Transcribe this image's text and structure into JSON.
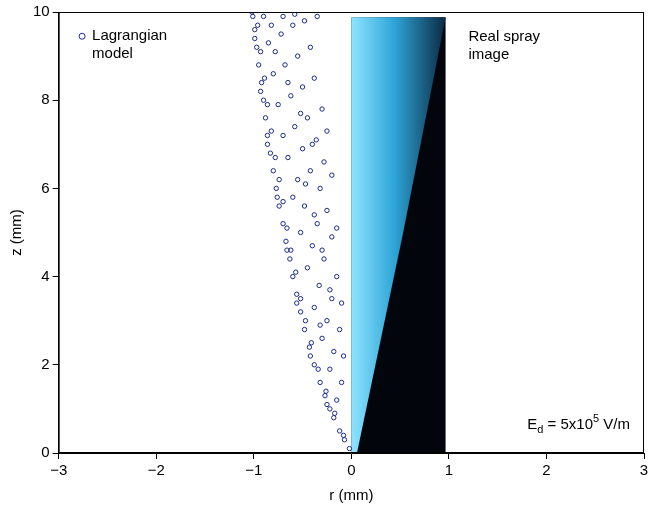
{
  "chart_data": {
    "type": "scatter",
    "xlabel": "r (mm)",
    "ylabel": "z (mm)",
    "xlim": [
      -3,
      3
    ],
    "xticks": [
      {
        "value": -3,
        "label": "−3"
      },
      {
        "value": -2,
        "label": "−2"
      },
      {
        "value": -1,
        "label": "−1"
      },
      0,
      1,
      2,
      3
    ],
    "ylim": [
      0,
      10
    ],
    "yticks": [
      0,
      2,
      4,
      6,
      8,
      10
    ],
    "grid": false,
    "legend": "upper left",
    "annotations": [
      {
        "text": "Real spray image"
      },
      {
        "parts": [
          {
            "text": "E"
          },
          {
            "sub": "d"
          },
          {
            "text": " = 5x10"
          },
          {
            "sup": "5"
          },
          {
            "text": " V/m"
          }
        ]
      }
    ],
    "x": [
      -0.02,
      -0.07,
      -0.12,
      -0.18,
      -0.22,
      -0.27,
      -0.32,
      -0.38,
      -0.43,
      -0.48,
      -0.52,
      -0.56,
      -0.6,
      -0.63,
      -0.67,
      -0.7,
      -0.74,
      -0.77,
      -0.8,
      -0.83,
      -0.86,
      -0.88,
      -0.9,
      -0.92,
      -0.95,
      -0.97,
      -0.99,
      -1.01,
      -0.08,
      -0.17,
      -0.26,
      -0.34,
      -0.41,
      -0.47,
      -0.52,
      -0.57,
      -0.62,
      -0.66,
      -0.7,
      -0.74,
      -0.78,
      -0.82,
      -0.86,
      -0.89,
      -0.93,
      -0.96,
      -0.25,
      -0.42,
      -0.56,
      -0.66,
      -0.76,
      -0.86,
      -0.93,
      -0.99,
      -1.02,
      -0.15,
      -0.1,
      -0.22,
      -0.18,
      -0.3,
      -0.12,
      -0.25,
      -0.38,
      -0.2,
      -0.33,
      -0.15,
      -0.45,
      -0.28,
      -0.4,
      -0.2,
      -0.52,
      -0.35,
      -0.25,
      -0.48,
      -0.6,
      -0.32,
      -0.55,
      -0.42,
      -0.28,
      -0.65,
      -0.5,
      -0.36,
      -0.7,
      -0.58,
      -0.45,
      -0.3,
      -0.75,
      -0.62,
      -0.5,
      -0.38,
      -0.8,
      -0.68,
      -0.55,
      -0.42,
      -0.85,
      -0.72,
      -0.6,
      -0.48,
      -0.9,
      -0.35,
      -0.78,
      -0.65,
      -0.52,
      -0.4,
      -0.47,
      -0.38,
      -0.3,
      -0.22,
      -0.32,
      -0.08,
      -0.58,
      -0.7,
      -0.82,
      -0.25,
      -0.2,
      -0.15,
      -0.1
    ],
    "series": [
      {
        "name": "Lagrangian model",
        "color": "#1c2a8c",
        "marker": "circle",
        "values": [
          0.1,
          0.3,
          0.5,
          0.8,
          1.0,
          1.3,
          1.6,
          2.0,
          2.4,
          2.8,
          3.2,
          3.6,
          4.0,
          4.4,
          4.8,
          5.2,
          5.6,
          6.0,
          6.4,
          6.8,
          7.2,
          7.6,
          8.0,
          8.4,
          8.8,
          9.2,
          9.6,
          9.9,
          0.4,
          0.9,
          1.4,
          1.9,
          2.5,
          3.0,
          3.5,
          4.1,
          4.6,
          5.1,
          5.7,
          6.2,
          6.7,
          7.3,
          7.9,
          8.5,
          9.1,
          9.7,
          1.1,
          2.2,
          3.4,
          4.6,
          5.8,
          7.0,
          8.2,
          9.4,
          10.0,
          1.2,
          1.6,
          1.9,
          2.3,
          2.6,
          2.8,
          3.0,
          3.3,
          3.5,
          3.8,
          4.0,
          4.2,
          4.4,
          4.7,
          4.9,
          5.0,
          5.2,
          5.5,
          5.6,
          5.8,
          6.0,
          6.2,
          6.4,
          6.6,
          6.7,
          6.9,
          7.1,
          7.2,
          7.4,
          7.6,
          7.8,
          7.9,
          8.1,
          8.3,
          8.5,
          8.6,
          8.8,
          9.0,
          9.2,
          9.3,
          9.5,
          9.7,
          9.8,
          9.9,
          9.9,
          9.1,
          8.4,
          7.7,
          7.0,
          6.1,
          5.4,
          4.6,
          3.7,
          2.9,
          2.2,
          9.95,
          9.9,
          9.7,
          7.3,
          6.3,
          5.1,
          3.4
        ]
      }
    ]
  }
}
